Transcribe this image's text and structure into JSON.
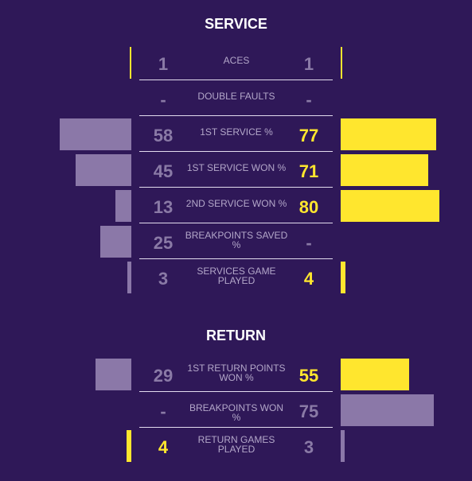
{
  "colors": {
    "background": "#2f1858",
    "highlight": "#ffe62e",
    "muted_bar": "#8b78a8",
    "muted_text": "#8a7aa6"
  },
  "sections": [
    {
      "title": "SERVICE",
      "rows": [
        {
          "label": "ACES",
          "left": "1",
          "right": "1",
          "left_win": false,
          "right_win": false,
          "left_bar": 2,
          "right_bar": 2,
          "left_bar_color": "#ffe62e",
          "right_bar_color": "#ffe62e"
        },
        {
          "label": "DOUBLE FAULTS",
          "left": "-",
          "right": "-",
          "left_win": false,
          "right_win": false,
          "left_bar": 0,
          "right_bar": 0,
          "left_bar_color": "#8b78a8",
          "right_bar_color": "#8b78a8"
        },
        {
          "label": "1ST SERVICE %",
          "left": "58",
          "right": "77",
          "left_win": false,
          "right_win": true,
          "left_bar": 90,
          "right_bar": 120,
          "left_bar_color": "#8b78a8",
          "right_bar_color": "#ffe62e"
        },
        {
          "label": "1ST SERVICE WON %",
          "left": "45",
          "right": "71",
          "left_win": false,
          "right_win": true,
          "left_bar": 70,
          "right_bar": 110,
          "left_bar_color": "#8b78a8",
          "right_bar_color": "#ffe62e"
        },
        {
          "label": "2ND SERVICE WON %",
          "left": "13",
          "right": "80",
          "left_win": false,
          "right_win": true,
          "left_bar": 20,
          "right_bar": 124,
          "left_bar_color": "#8b78a8",
          "right_bar_color": "#ffe62e"
        },
        {
          "label": "BREAKPOINTS SAVED %",
          "left": "25",
          "right": "-",
          "left_win": false,
          "right_win": false,
          "left_bar": 39,
          "right_bar": 0,
          "left_bar_color": "#8b78a8",
          "right_bar_color": "#8b78a8"
        },
        {
          "label": "SERVICES GAME PLAYED",
          "left": "3",
          "right": "4",
          "left_win": false,
          "right_win": true,
          "left_bar": 5,
          "right_bar": 6,
          "left_bar_color": "#8b78a8",
          "right_bar_color": "#ffe62e"
        }
      ]
    },
    {
      "title": "RETURN",
      "rows": [
        {
          "label": "1ST RETURN POINTS WON %",
          "left": "29",
          "right": "55",
          "left_win": false,
          "right_win": true,
          "left_bar": 45,
          "right_bar": 86,
          "left_bar_color": "#8b78a8",
          "right_bar_color": "#ffe62e"
        },
        {
          "label": "BREAKPOINTS WON %",
          "left": "-",
          "right": "75",
          "left_win": false,
          "right_win": false,
          "left_bar": 0,
          "right_bar": 117,
          "left_bar_color": "#8b78a8",
          "right_bar_color": "#8b78a8"
        },
        {
          "label": "RETURN GAMES PLAYED",
          "left": "4",
          "right": "3",
          "left_win": true,
          "right_win": false,
          "left_bar": 6,
          "right_bar": 5,
          "left_bar_color": "#ffe62e",
          "right_bar_color": "#8b78a8"
        }
      ]
    }
  ]
}
